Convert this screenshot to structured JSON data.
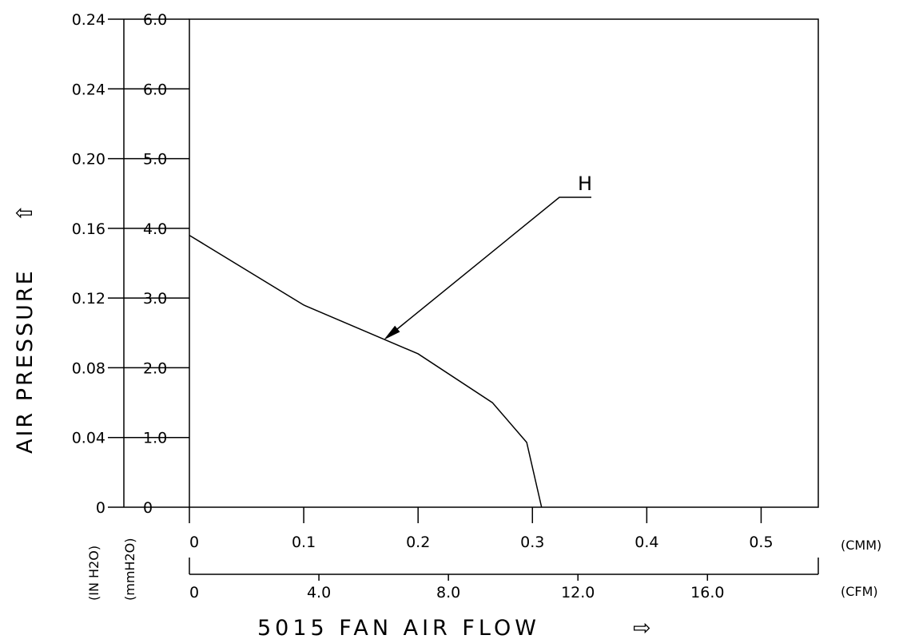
{
  "chart_data": {
    "type": "line",
    "title": "",
    "xlabel": "5015 FAN AIR FLOW",
    "ylabel": "AIR PRESSURE",
    "x_unit_primary": "(CMM)",
    "x_unit_secondary": "(CFM)",
    "y_unit_inh2o": "(IN H2O)",
    "y_unit_mmh2o": "(mmH2O)",
    "xlim": [
      0,
      0.55
    ],
    "ylim": [
      0,
      7.0
    ],
    "grid": false,
    "x_ticks_cmm": [
      "0",
      "0.1",
      "0.2",
      "0.3",
      "0.4",
      "0.5"
    ],
    "x_ticks_cfm": [
      "0",
      "4.0",
      "8.0",
      "12.0",
      "16.0"
    ],
    "y_ticks_mmh2o": [
      "0",
      "1.0",
      "2.0",
      "3.0",
      "4.0",
      "5.0",
      "6.0",
      "6.0"
    ],
    "y_ticks_inh2o": [
      "0",
      "0.04",
      "0.08",
      "0.12",
      "0.16",
      "0.20",
      "0.24",
      "0.24"
    ],
    "series": [
      {
        "name": "H",
        "x": [
          0,
          0.1,
          0.2,
          0.265,
          0.295,
          0.308
        ],
        "y": [
          3.9,
          2.9,
          2.2,
          1.5,
          0.93,
          0
        ]
      }
    ],
    "annotations": [
      {
        "text": "H",
        "target_x": 0.17,
        "target_y": 2.4
      }
    ],
    "arrow_glyph": "⇨",
    "up_arrow_glyph": "⇧"
  }
}
